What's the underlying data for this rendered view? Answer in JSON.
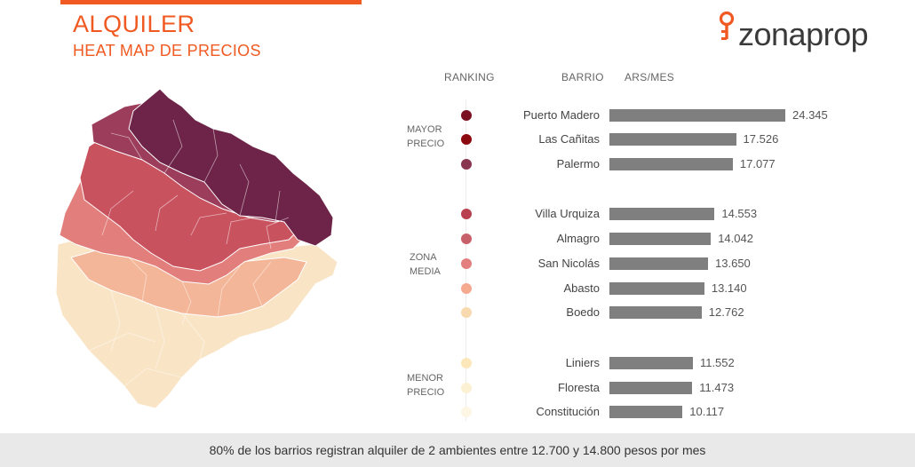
{
  "header": {
    "title": "ALQUILER",
    "subtitle": "HEAT MAP DE PRECIOS",
    "accent_color": "#f05a22"
  },
  "logo": {
    "text": "zonaprop",
    "icon": "pin-icon"
  },
  "columns": {
    "ranking": "RANKING",
    "barrio": "BARRIO",
    "price": "ARS/MES"
  },
  "zones": [
    {
      "line1": "MAYOR",
      "line2": "PRECIO"
    },
    {
      "line1": "ZONA",
      "line2": "MEDIA"
    },
    {
      "line1": "MENOR",
      "line2": "PRECIO"
    }
  ],
  "chart_data": {
    "type": "bar",
    "orientation": "horizontal",
    "categories": [
      "Puerto Madero",
      "Las Cañitas",
      "Palermo",
      "Villa Urquiza",
      "Almagro",
      "San Nicolás",
      "Abasto",
      "Boedo",
      "Liniers",
      "Floresta",
      "Constitución"
    ],
    "values": [
      24345,
      17526,
      17077,
      14553,
      14042,
      13650,
      13140,
      12762,
      11552,
      11473,
      10117
    ],
    "value_labels": [
      "24.345",
      "17.526",
      "17.077",
      "14.553",
      "14.042",
      "13.650",
      "13.140",
      "12.762",
      "11.552",
      "11.473",
      "10.117"
    ],
    "dot_colors": [
      "#7a1022",
      "#8b0a0f",
      "#8a3550",
      "#b9404e",
      "#c8606b",
      "#e3807f",
      "#f5a98e",
      "#f9d9ae",
      "#fbe7b9",
      "#fdf1d3",
      "#fef6e4"
    ],
    "bar_color": "#7f7f7f",
    "xlim": [
      0,
      24345
    ]
  },
  "map_colors": {
    "darkest": "#6e2448",
    "dark": "#9c3d5c",
    "mid": "#c9525f",
    "midlight": "#e27f7c",
    "peach": "#f4b698",
    "light": "#f9e4c5"
  },
  "footer": {
    "text": "80% de los barrios registran alquiler de 2 ambientes entre 12.700 y 14.800 pesos por mes"
  }
}
